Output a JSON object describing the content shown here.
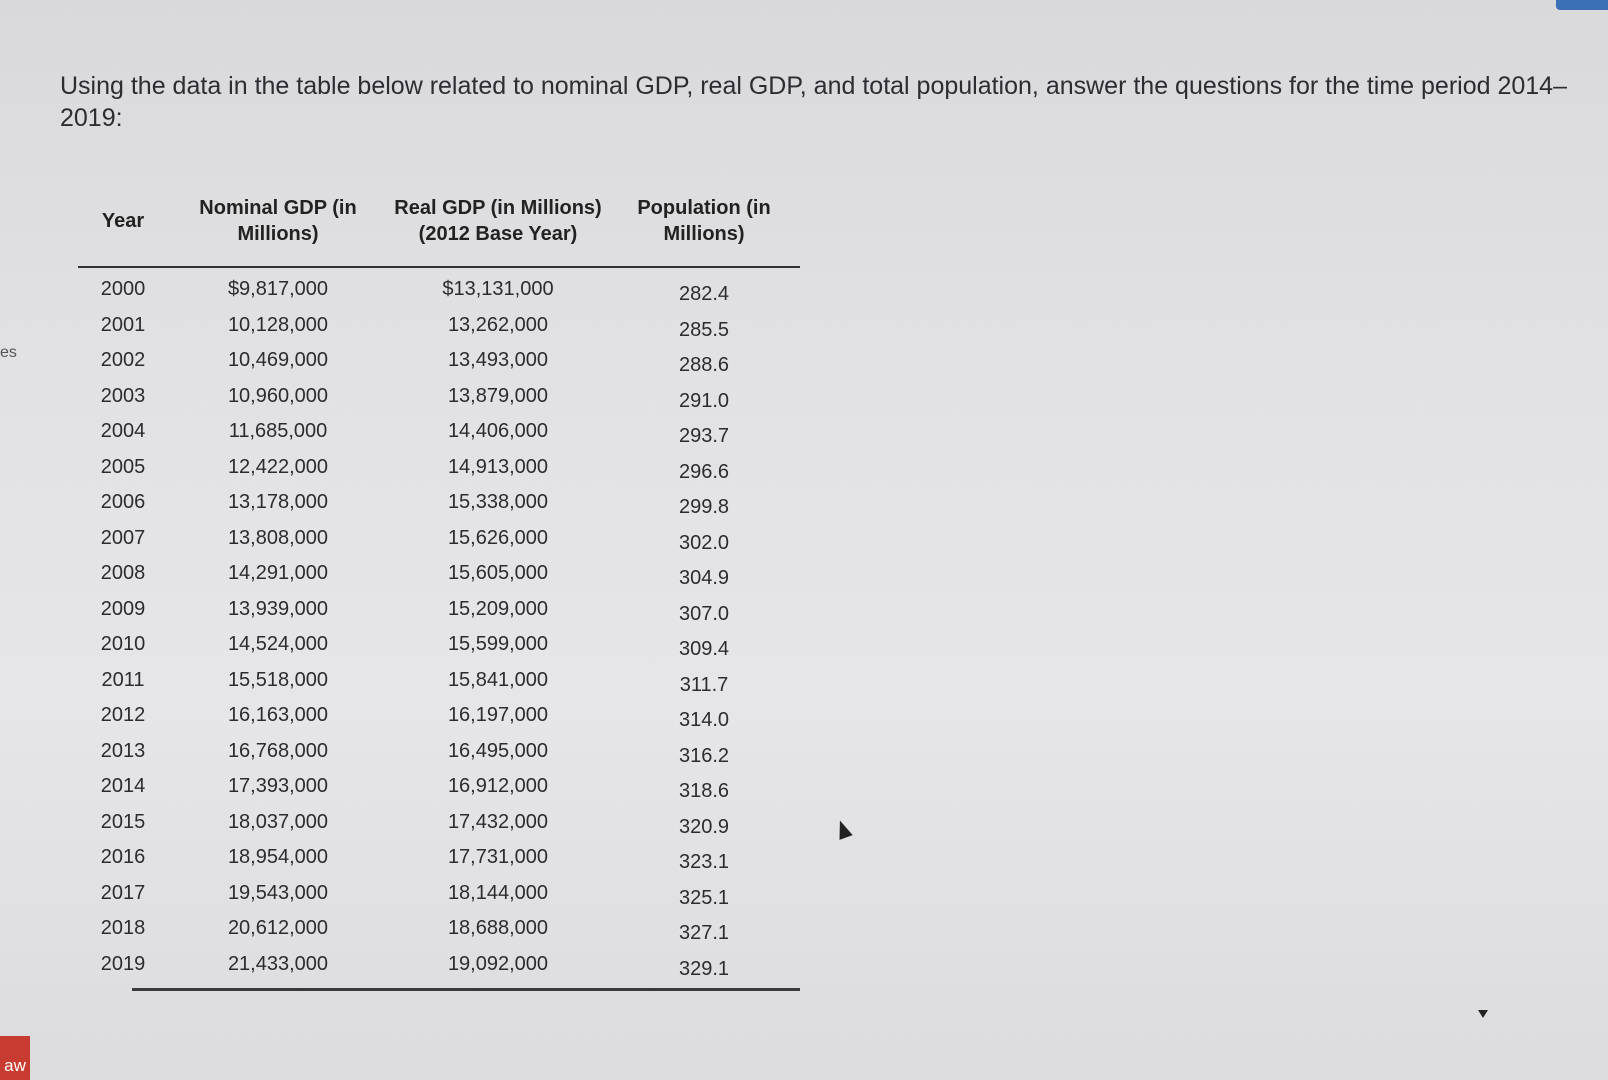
{
  "prompt": "Using the data in the table below related to nominal GDP, real GDP, and total population, answer the questions for the time period 2014–2019:",
  "side": {
    "left_text": "es",
    "tab_label": "aw"
  },
  "table": {
    "headers": [
      "Year",
      "Nominal GDP (in Millions)",
      "Real GDP (in Millions) (2012 Base Year)",
      "Population (in Millions)"
    ],
    "rows": [
      [
        "2000",
        "$9,817,000",
        "$13,131,000",
        "282.4"
      ],
      [
        "2001",
        "10,128,000",
        "13,262,000",
        "285.5"
      ],
      [
        "2002",
        "10,469,000",
        "13,493,000",
        "288.6"
      ],
      [
        "2003",
        "10,960,000",
        "13,879,000",
        "291.0"
      ],
      [
        "2004",
        "11,685,000",
        "14,406,000",
        "293.7"
      ],
      [
        "2005",
        "12,422,000",
        "14,913,000",
        "296.6"
      ],
      [
        "2006",
        "13,178,000",
        "15,338,000",
        "299.8"
      ],
      [
        "2007",
        "13,808,000",
        "15,626,000",
        "302.0"
      ],
      [
        "2008",
        "14,291,000",
        "15,605,000",
        "304.9"
      ],
      [
        "2009",
        "13,939,000",
        "15,209,000",
        "307.0"
      ],
      [
        "2010",
        "14,524,000",
        "15,599,000",
        "309.4"
      ],
      [
        "2011",
        "15,518,000",
        "15,841,000",
        "311.7"
      ],
      [
        "2012",
        "16,163,000",
        "16,197,000",
        "314.0"
      ],
      [
        "2013",
        "16,768,000",
        "16,495,000",
        "316.2"
      ],
      [
        "2014",
        "17,393,000",
        "16,912,000",
        "318.6"
      ],
      [
        "2015",
        "18,037,000",
        "17,432,000",
        "320.9"
      ],
      [
        "2016",
        "18,954,000",
        "17,731,000",
        "323.1"
      ],
      [
        "2017",
        "19,543,000",
        "18,144,000",
        "325.1"
      ],
      [
        "2018",
        "20,612,000",
        "18,688,000",
        "327.1"
      ],
      [
        "2019",
        "21,433,000",
        "19,092,000",
        "329.1"
      ]
    ]
  },
  "colors": {
    "accent": "#3b6fb6",
    "side_tab": "#c73b31"
  }
}
